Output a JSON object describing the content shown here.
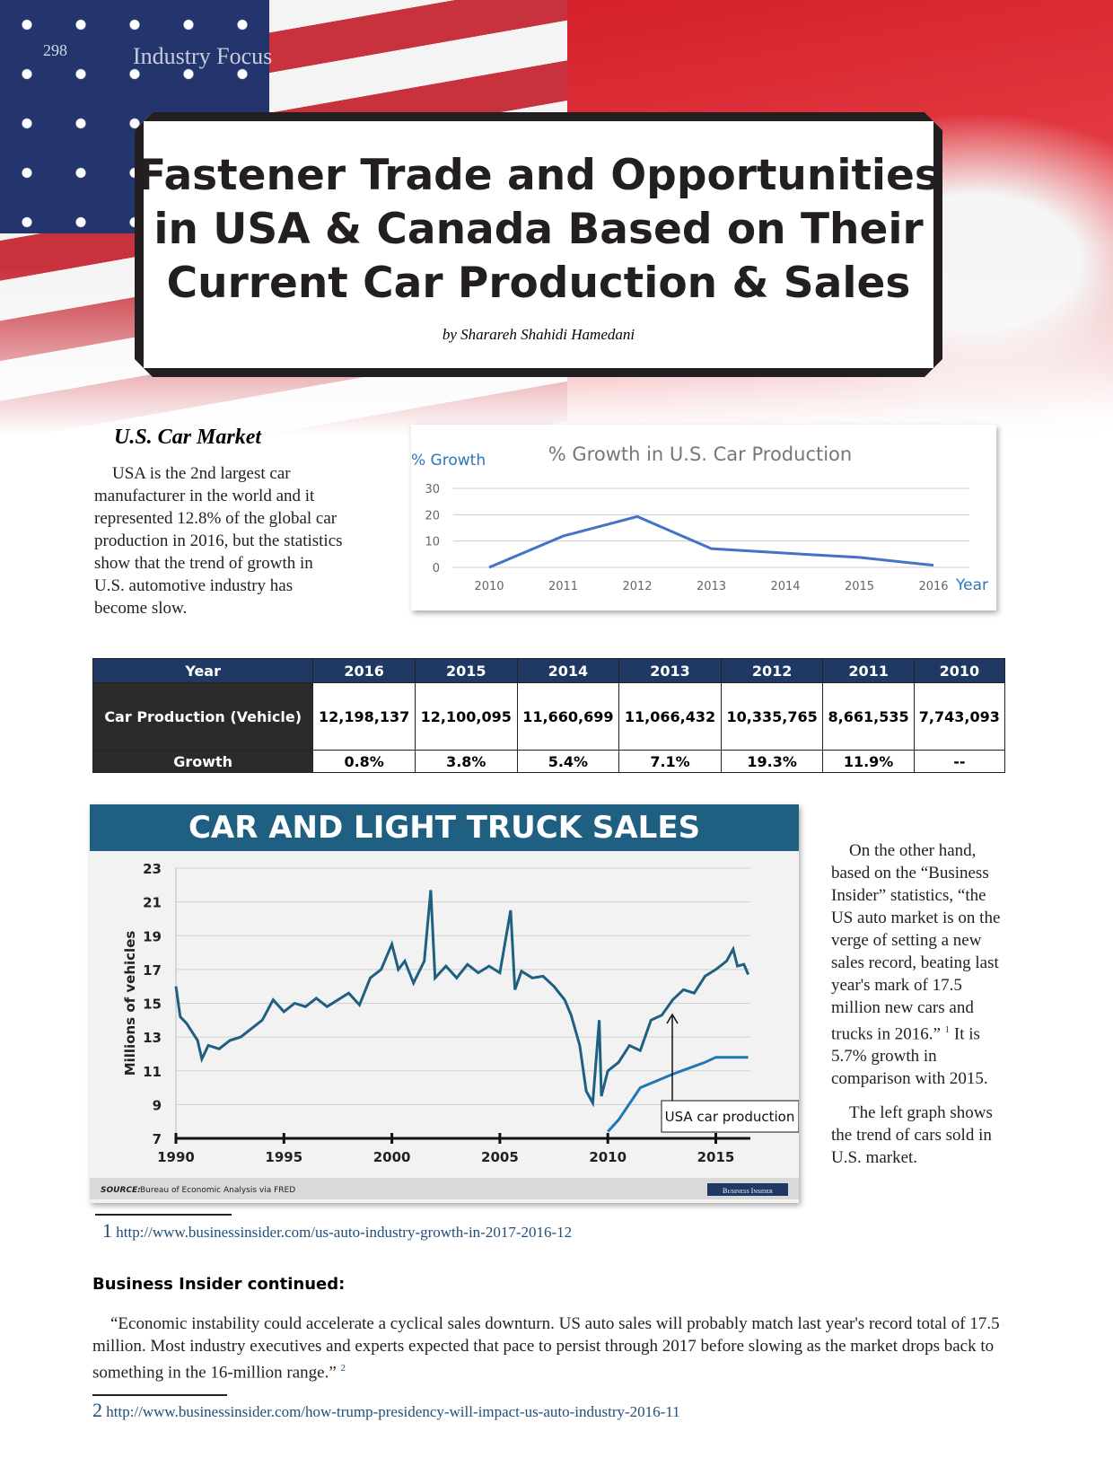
{
  "header": {
    "page_number": "298",
    "section": "Industry Focus"
  },
  "title": {
    "lines": [
      "Fastener Trade and Opportunities",
      "in USA & Canada Based on Their",
      "Current Car Production & Sales"
    ],
    "byline": "by Sharareh Shahidi Hamedani"
  },
  "us_car_market": {
    "heading": "U.S. Car Market",
    "text": "USA is the 2nd largest car manufacturer in the world and it represented 12.8% of the global car production in 2016, but the statistics show that the trend of growth in U.S. automotive industry has become slow."
  },
  "chart_data": [
    {
      "type": "line",
      "title": "% Growth in U.S. Car Production",
      "y_label": "% Growth",
      "x_label": "Year",
      "categories": [
        "2010",
        "2011",
        "2012",
        "2013",
        "2014",
        "2015",
        "2016"
      ],
      "values": [
        0,
        11.9,
        19.3,
        7.1,
        5.4,
        3.8,
        0.8
      ],
      "color": "#4472c4",
      "ylim": [
        0,
        30
      ],
      "yticks": [
        0,
        10,
        20,
        30
      ],
      "grid": true
    },
    {
      "type": "line",
      "title": "CAR AND LIGHT TRUCK SALES",
      "y_label": "Millions of vehicles",
      "source_label": "SOURCE:",
      "source": "Bureau of Economic Analysis via FRED",
      "brand": "Business Insider",
      "xlim": [
        1990,
        2016.6
      ],
      "xticks": [
        1990,
        1995,
        2000,
        2005,
        2010,
        2015
      ],
      "ylim": [
        7,
        23
      ],
      "yticks": [
        7,
        9,
        11,
        13,
        15,
        17,
        19,
        21,
        23
      ],
      "grid": true,
      "series": [
        {
          "color": "#1f5f82",
          "x": [
            1990,
            1990.2,
            1990.5,
            1991,
            1991.2,
            1991.5,
            1992,
            1992.5,
            1993,
            1993.5,
            1994,
            1994.5,
            1995,
            1995.5,
            1996,
            1996.5,
            1997,
            1997.5,
            1998,
            1998.5,
            1999,
            1999.5,
            2000,
            2000.3,
            2000.6,
            2001,
            2001.5,
            2001.8,
            2002,
            2002.5,
            2003,
            2003.5,
            2004,
            2004.5,
            2005,
            2005.5,
            2005.7,
            2006,
            2006.5,
            2007,
            2007.5,
            2008,
            2008.3,
            2008.7,
            2009,
            2009.3,
            2009.6,
            2009.7,
            2010,
            2010.5,
            2011,
            2011.5,
            2012,
            2012.5,
            2013,
            2013.5,
            2014,
            2014.5,
            2015,
            2015.5,
            2015.8,
            2016,
            2016.3,
            2016.5
          ],
          "values": [
            16,
            14.2,
            13.8,
            12.8,
            11.7,
            12.5,
            12.3,
            12.8,
            13,
            13.5,
            14,
            15.2,
            14.5,
            15,
            14.8,
            15.3,
            14.8,
            15.2,
            15.6,
            14.9,
            16.5,
            17,
            18.5,
            17,
            17.5,
            16.2,
            17.5,
            21.7,
            16.5,
            17.2,
            16.5,
            17.3,
            16.8,
            17.2,
            16.8,
            20.5,
            15.8,
            16.9,
            16.5,
            16.6,
            16,
            15.2,
            14.3,
            12.5,
            9.8,
            9.1,
            14,
            9.5,
            11,
            11.5,
            12.5,
            12.2,
            14,
            14.3,
            15.2,
            15.8,
            15.6,
            16.6,
            17,
            17.5,
            18.2,
            17.2,
            17.3,
            16.7
          ]
        },
        {
          "name": "USA car production",
          "color": "#1f77b4",
          "x": [
            2010,
            2010.5,
            2011.5,
            2013,
            2014.5,
            2015,
            2016.5
          ],
          "values": [
            7.4,
            8.1,
            10,
            10.8,
            11.5,
            11.8,
            11.8
          ]
        }
      ]
    }
  ],
  "table": {
    "header": [
      "Year",
      "2016",
      "2015",
      "2014",
      "2013",
      "2012",
      "2011",
      "2010"
    ],
    "rows": [
      [
        "Car Production (Vehicle)",
        "12,198,137",
        "12,100,095",
        "11,660,699",
        "11,066,432",
        "10,335,765",
        "8,661,535",
        "7,743,093"
      ],
      [
        "Growth",
        "0.8%",
        "3.8%",
        "5.4%",
        "7.1%",
        "19.3%",
        "11.9%",
        "--"
      ]
    ]
  },
  "right_column": {
    "paragraph1": "On the other hand, based on the “Business Insider” statistics, “the US auto market is on the verge of setting a new sales record, beating last year's mark of 17.5 million new cars and trucks in 2016.”",
    "ref": "1",
    "paragraph1_end": "It is 5.7% growth in comparison with 2015.",
    "paragraph2": "The left graph shows the trend of cars sold in U.S. market."
  },
  "footnotes": [
    {
      "number": "1",
      "url": "http://www.businessinsider.com/us-auto-industry-growth-in-2017-2016-12"
    },
    {
      "number": "2",
      "url": "http://www.businessinsider.com/how-trump-presidency-will-impact-us-auto-industry-2016-11"
    }
  ],
  "continued": {
    "heading": "Business Insider continued:",
    "text": "“Economic instability could accelerate a cyclical sales downturn. US auto sales will probably match last year's record total of 17.5 million. Most industry executives and experts expected that pace to persist through 2017 before slowing as the market drops back to something in the 16-million range.”",
    "ref": "2"
  }
}
